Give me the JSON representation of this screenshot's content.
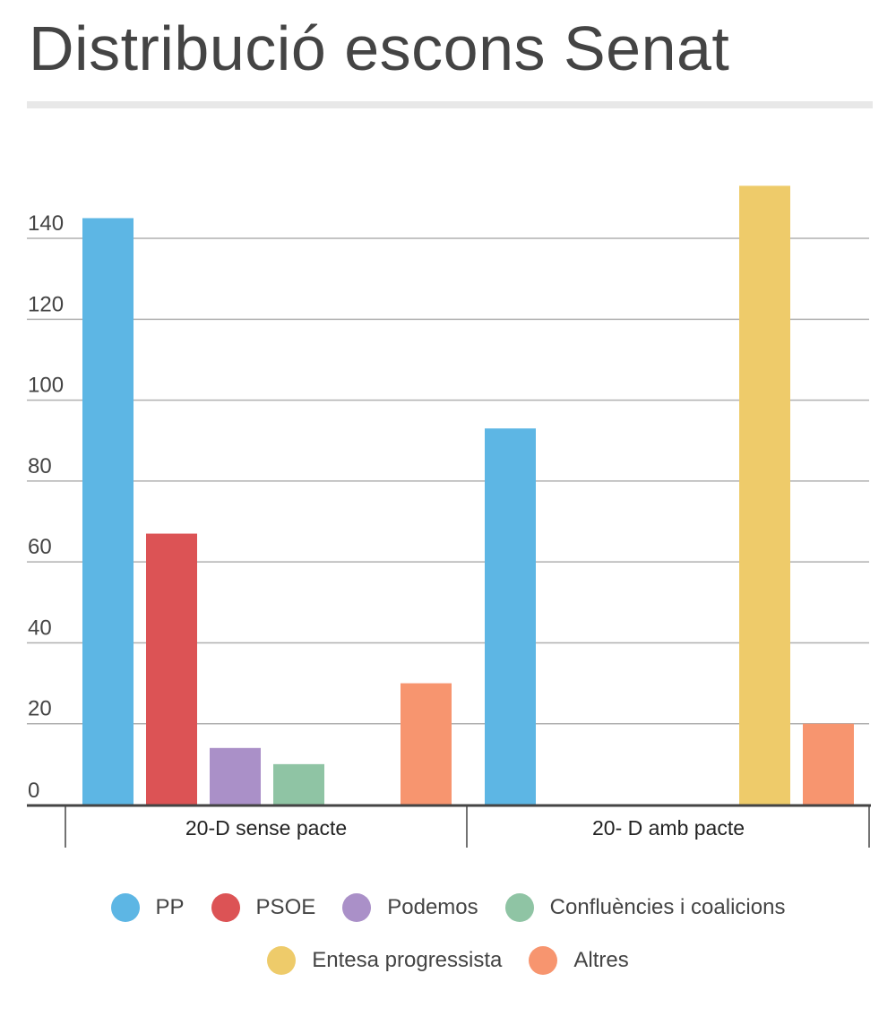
{
  "chart_data": {
    "type": "bar",
    "title": "Distribució escons Senat",
    "xlabel": "",
    "ylabel": "",
    "categories": [
      "20-D sense pacte",
      "20- D amb pacte"
    ],
    "series": [
      {
        "name": "PP",
        "color": "#5db6e4",
        "values": [
          145,
          93
        ]
      },
      {
        "name": "PSOE",
        "color": "#dc5355",
        "values": [
          67,
          0
        ]
      },
      {
        "name": "Podemos",
        "color": "#aa90c8",
        "values": [
          14,
          0
        ]
      },
      {
        "name": "Confluències i coalicions",
        "color": "#8fc4a4",
        "values": [
          10,
          0
        ]
      },
      {
        "name": "Entesa progressista",
        "color": "#eecb6a",
        "values": [
          0,
          153
        ]
      },
      {
        "name": "Altres",
        "color": "#f7956f",
        "values": [
          30,
          20
        ]
      }
    ],
    "ylim": [
      0,
      150
    ],
    "yticks": [
      0,
      20,
      40,
      60,
      80,
      100,
      120,
      140
    ],
    "grid": true,
    "legend_position": "bottom"
  }
}
